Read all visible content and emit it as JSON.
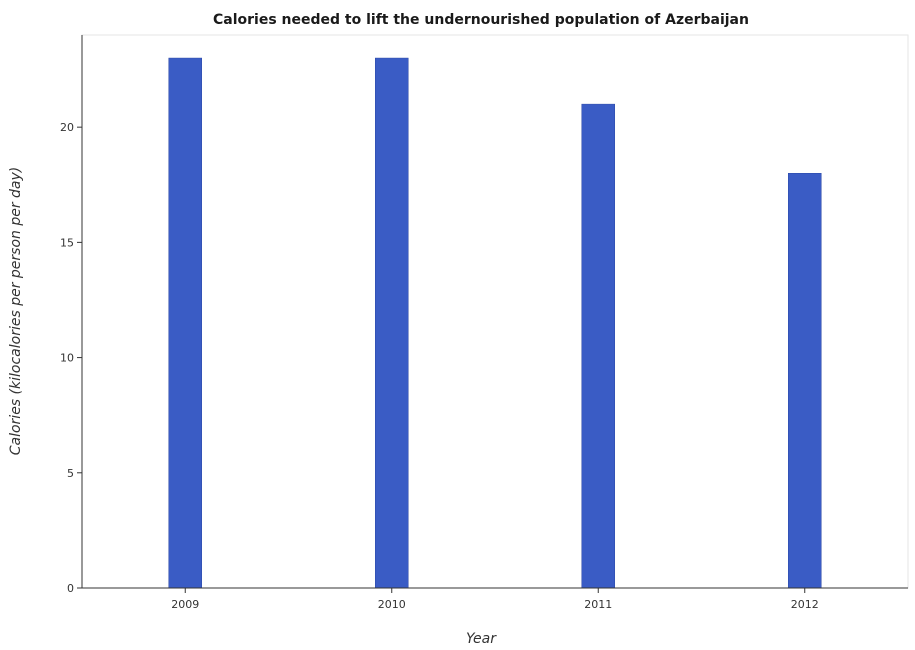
{
  "chart_data": {
    "type": "bar",
    "title": "Calories needed to lift the undernourished population of Azerbaijan",
    "xlabel": "Year",
    "ylabel": "Calories (kilocalories per person per day)",
    "categories": [
      "2009",
      "2010",
      "2011",
      "2012"
    ],
    "values": [
      23,
      23,
      21,
      18
    ],
    "ylim": [
      0,
      24
    ],
    "yticks": [
      0,
      5,
      10,
      15,
      20
    ],
    "grid": false,
    "bar_color": "#3a5cc5"
  }
}
